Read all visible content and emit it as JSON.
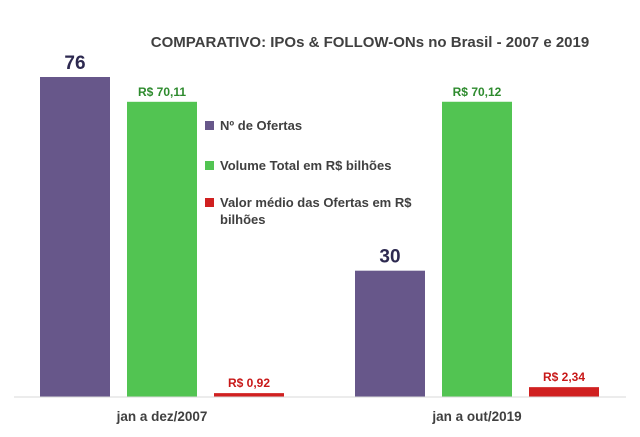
{
  "chart_data": {
    "type": "bar",
    "title": "COMPARATIVO: IPOs & FOLLOW-ONs no Brasil - 2007 e 2019",
    "categories": [
      "jan a dez/2007",
      "jan a out/2019"
    ],
    "series": [
      {
        "name": "Nº  de   Ofertas",
        "values": [
          76,
          30
        ],
        "labels": [
          "76",
          "30"
        ],
        "color": "#67578a"
      },
      {
        "name": "Volume Total em R$ bilhões",
        "values": [
          70.11,
          70.12
        ],
        "labels": [
          "R$ 70,11",
          "R$ 70,12"
        ],
        "color": "#52c452",
        "label_color": "#2e8b2e"
      },
      {
        "name": "Valor médio das Ofertas em R$ bilhões",
        "values": [
          0.92,
          2.34
        ],
        "labels": [
          "R$ 0,92",
          "R$ 2,34"
        ],
        "color": "#d02020",
        "label_color": "#c81818"
      }
    ],
    "ylim": [
      0,
      76
    ],
    "grid": false,
    "legend_position": "center"
  }
}
